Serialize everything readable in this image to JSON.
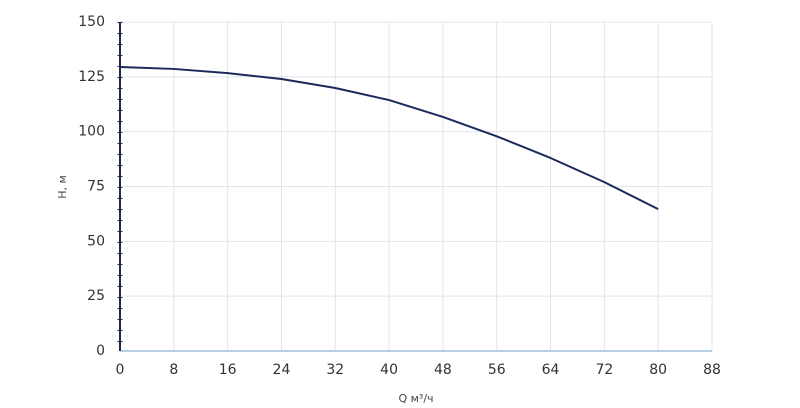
{
  "chart_data": {
    "type": "line",
    "x_label": "Q м³/ч",
    "y_label": "H, м",
    "x": [
      0,
      8,
      16,
      24,
      32,
      40,
      48,
      56,
      64,
      72,
      80
    ],
    "series": [
      {
        "name": "H",
        "color": "#1b2a5c",
        "values": [
          129.5,
          128.6,
          126.7,
          124,
          119.9,
          114.4,
          106.7,
          97.9,
          88,
          77,
          64.7
        ]
      }
    ],
    "xlim": [
      0,
      88
    ],
    "xticks": [
      0,
      8,
      16,
      24,
      32,
      40,
      48,
      56,
      64,
      72,
      80,
      88
    ],
    "ylim": [
      0,
      150
    ],
    "yticks": [
      0,
      25,
      50,
      75,
      100,
      125,
      150
    ],
    "grid": true
  }
}
